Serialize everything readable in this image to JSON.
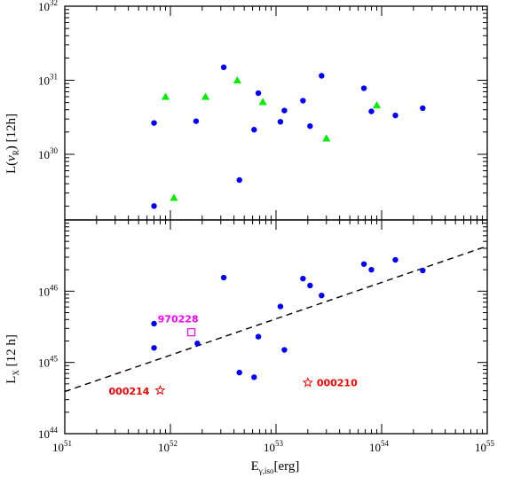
{
  "chart_data": [
    {
      "type": "scatter",
      "panel": "top",
      "ylabel": "L(ν_R) [12h]",
      "ylabel_parts": {
        "pre": "L(",
        "nu": "ν",
        "sub": "R",
        "post": ") [12h]"
      },
      "xscale": "log",
      "yscale": "log",
      "xlim": [
        1e+51,
        1e+55
      ],
      "ylim": [
        1.3e+29,
        1e+32
      ],
      "y_ticks": [
        {
          "base": "10",
          "exp": "30",
          "value": 1e+30
        },
        {
          "base": "10",
          "exp": "31",
          "value": 1e+31
        },
        {
          "base": "10",
          "exp": "32",
          "value": 1e+32
        }
      ],
      "series": [
        {
          "marker": "circle",
          "color": "#0000ff",
          "points": [
            [
              7e+51,
              2e+29
            ],
            [
              7e+51,
              2.65e+30
            ],
            [
              1.75e+52,
              2.8e+30
            ],
            [
              3.2e+52,
              1.5e+31
            ],
            [
              4.5e+52,
              4.5e+29
            ],
            [
              6.2e+52,
              2.15e+30
            ],
            [
              6.8e+52,
              6.7e+30
            ],
            [
              1.1e+53,
              2.75e+30
            ],
            [
              1.2e+53,
              3.9e+30
            ],
            [
              1.8e+53,
              5.3e+30
            ],
            [
              2.1e+53,
              2.4e+30
            ],
            [
              2.7e+53,
              1.15e+31
            ],
            [
              6.8e+53,
              7.8e+30
            ],
            [
              8e+53,
              3.8e+30
            ],
            [
              1.35e+54,
              3.35e+30
            ],
            [
              2.45e+54,
              4.2e+30
            ]
          ]
        },
        {
          "marker": "triangle",
          "color": "#00ee00",
          "points": [
            [
              9e+51,
              6e+30
            ],
            [
              1.08e+52,
              2.6e+29
            ],
            [
              2.15e+52,
              6e+30
            ],
            [
              4.3e+52,
              1e+31
            ],
            [
              7.5e+52,
              5.1e+30
            ],
            [
              3e+53,
              1.65e+30
            ],
            [
              9e+53,
              4.6e+30
            ]
          ]
        }
      ]
    },
    {
      "type": "scatter",
      "panel": "bottom",
      "ylabel": "L_X [12 h]",
      "ylabel_parts": {
        "pre": "L",
        "sub": "X",
        "post": " [12 h]"
      },
      "xlabel": "E_γ,iso[erg]",
      "xlabel_parts": {
        "pre": "E",
        "sub": "γ,iso",
        "post": "[erg]"
      },
      "xscale": "log",
      "yscale": "log",
      "xlim": [
        1e+51,
        1e+55
      ],
      "ylim": [
        1e+44,
        1e+47
      ],
      "x_ticks": [
        {
          "base": "10",
          "exp": "51",
          "value": 1e+51
        },
        {
          "base": "10",
          "exp": "52",
          "value": 1e+52
        },
        {
          "base": "10",
          "exp": "53",
          "value": 1e+53
        },
        {
          "base": "10",
          "exp": "54",
          "value": 1e+54
        },
        {
          "base": "10",
          "exp": "55",
          "value": 1e+55
        }
      ],
      "y_ticks": [
        {
          "base": "10",
          "exp": "44",
          "value": 1e+44
        },
        {
          "base": "10",
          "exp": "45",
          "value": 1e+45
        },
        {
          "base": "10",
          "exp": "46",
          "value": 1e+46
        }
      ],
      "fit_line": {
        "style": "dashed",
        "color": "#000000",
        "points": [
          [
            1e+51,
            3.9e+44
          ],
          [
            1e+55,
            4.3e+46
          ]
        ]
      },
      "series": [
        {
          "marker": "circle",
          "color": "#0000ff",
          "points": [
            [
              7e+51,
              1.6e+45
            ],
            [
              7e+51,
              3.5e+45
            ],
            [
              1.8e+52,
              1.85e+45
            ],
            [
              3.2e+52,
              1.55e+46
            ],
            [
              4.5e+52,
              7.2e+44
            ],
            [
              6.2e+52,
              6.2e+44
            ],
            [
              6.8e+52,
              2.3e+45
            ],
            [
              1.1e+53,
              6.1e+45
            ],
            [
              1.2e+53,
              1.5e+45
            ],
            [
              1.8e+53,
              1.5e+46
            ],
            [
              2.1e+53,
              1.2e+46
            ],
            [
              2.7e+53,
              8.7e+45
            ],
            [
              6.8e+53,
              2.4e+46
            ],
            [
              8e+53,
              2e+46
            ],
            [
              1.35e+54,
              2.75e+46
            ],
            [
              2.45e+54,
              1.95e+46
            ]
          ]
        },
        {
          "marker": "open-square",
          "color": "#ff00ff",
          "points": [
            [
              1.58e+52,
              2.65e+45
            ]
          ],
          "label": "970228"
        },
        {
          "marker": "open-star",
          "color": "#ff0000",
          "points": [
            [
              8e+51,
              4.05e+44
            ],
            [
              2e+53,
              5.2e+44
            ]
          ],
          "labels": [
            "000214",
            "000210"
          ]
        }
      ],
      "annotations": [
        {
          "text": "970228",
          "color": "#ff00ff"
        },
        {
          "text": "000214",
          "color": "#ff0000"
        },
        {
          "text": "000210",
          "color": "#ff0000"
        }
      ]
    }
  ]
}
